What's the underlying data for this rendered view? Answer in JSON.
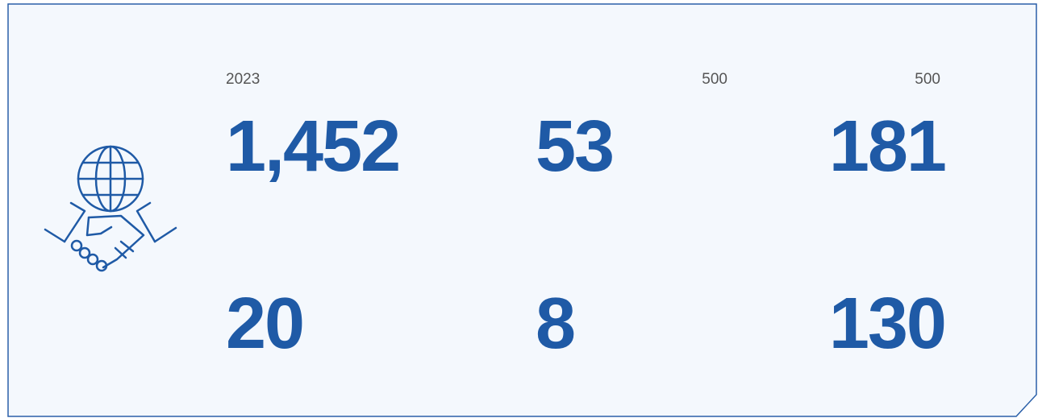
{
  "stats": [
    {
      "label": "2023",
      "value": "1,452"
    },
    {
      "label": "500",
      "value": "53"
    },
    {
      "label": "500",
      "value": "181"
    },
    {
      "value": "20"
    },
    {
      "value": "8"
    },
    {
      "value": "130"
    }
  ]
}
